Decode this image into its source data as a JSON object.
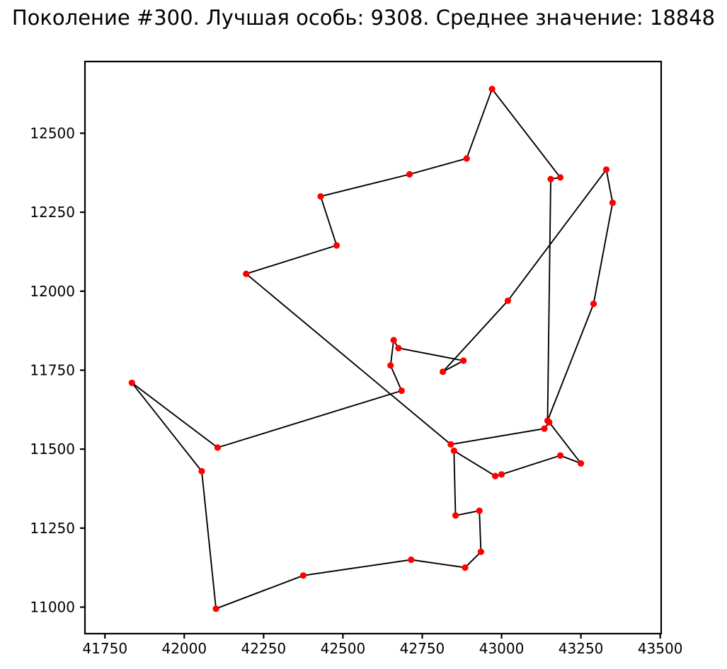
{
  "title": "Поколение #300. Лучшая особь: 9308. Среднее значение: 18848",
  "generation": 300,
  "best_individual": 9308,
  "average_value": 18848,
  "colors": {
    "marker": "#ff0000",
    "line": "#000000",
    "spine": "#000000",
    "text": "#000000",
    "background": "#ffffff"
  },
  "chart_data": {
    "type": "scatter",
    "title": "Поколение #300. Лучшая особь: 9308. Среднее значение: 18848",
    "xlabel": "",
    "ylabel": "",
    "grid": false,
    "legend_position": "none",
    "xlim": [
      41687,
      43503
    ],
    "ylim": [
      10916,
      12727
    ],
    "x_ticks": [
      41750,
      42000,
      42250,
      42500,
      42750,
      43000,
      43250,
      43500
    ],
    "y_ticks": [
      11000,
      11250,
      11500,
      11750,
      12000,
      12250,
      12500
    ],
    "series_note": "TSP route visualization: 37 cities (red markers) joined by black line segments forming a closed tour; points listed in tour order",
    "closed_tour": true,
    "points": [
      [
        42970,
        12640
      ],
      [
        43185,
        12360
      ],
      [
        43155,
        12355
      ],
      [
        43145,
        11590
      ],
      [
        43290,
        11960
      ],
      [
        43350,
        12280
      ],
      [
        43330,
        12385
      ],
      [
        43020,
        11970
      ],
      [
        42815,
        11745
      ],
      [
        42880,
        11780
      ],
      [
        42675,
        11820
      ],
      [
        42660,
        11845
      ],
      [
        42650,
        11765
      ],
      [
        42685,
        11685
      ],
      [
        42105,
        11505
      ],
      [
        41835,
        11710
      ],
      [
        42055,
        11430
      ],
      [
        42100,
        10995
      ],
      [
        42375,
        11100
      ],
      [
        42715,
        11150
      ],
      [
        42885,
        11125
      ],
      [
        42935,
        11175
      ],
      [
        42930,
        11305
      ],
      [
        42855,
        11290
      ],
      [
        42850,
        11495
      ],
      [
        42980,
        11415
      ],
      [
        43000,
        11420
      ],
      [
        43185,
        11480
      ],
      [
        43250,
        11455
      ],
      [
        43150,
        11585
      ],
      [
        43135,
        11565
      ],
      [
        42840,
        11515
      ],
      [
        42195,
        12055
      ],
      [
        42480,
        12145
      ],
      [
        42430,
        12300
      ],
      [
        42710,
        12370
      ],
      [
        42890,
        12420
      ]
    ]
  }
}
